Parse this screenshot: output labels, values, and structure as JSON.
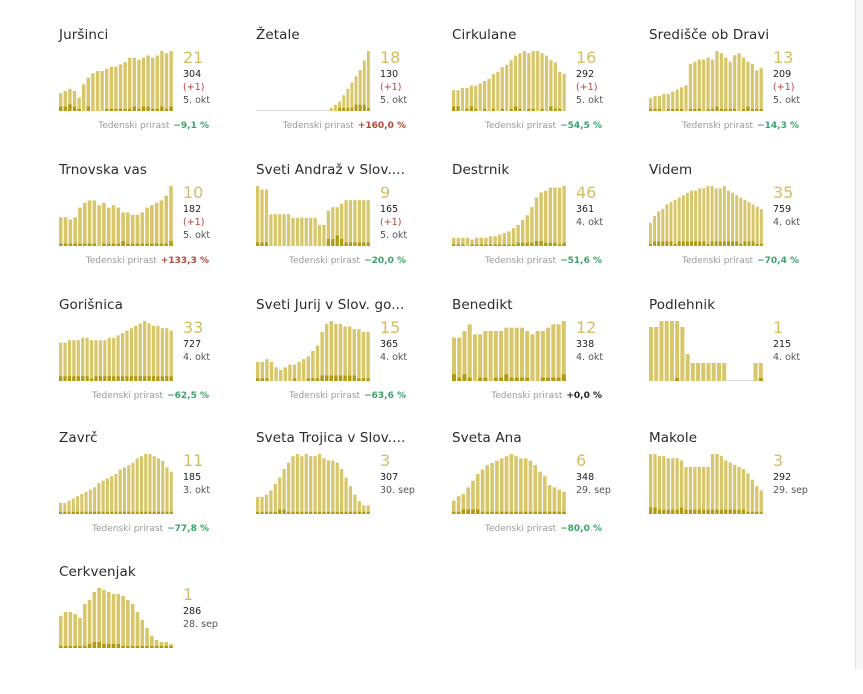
{
  "colors": {
    "bar": "#d7c76a",
    "bar_dark": "#b09a12",
    "big_number": "#d2bf62",
    "positive": "#b5463a",
    "negative": "#3aa36a",
    "neutral": "#222222"
  },
  "growth_label": "Tedenski prirast",
  "chart_data": [
    {
      "type": "bar",
      "title": "Juršinci",
      "big": "21",
      "total": "304",
      "delta": "(+1)",
      "date": "5. okt",
      "growth": "−9,1 %",
      "growth_sign": "neg",
      "values": [
        8,
        9,
        10,
        9,
        6,
        12,
        15,
        17,
        18,
        18,
        19,
        20,
        20,
        21,
        22,
        24,
        24,
        23,
        24,
        25,
        24,
        25,
        27,
        26,
        27
      ],
      "values2": [
        2,
        2,
        3,
        2,
        1,
        0,
        2,
        0,
        0,
        0,
        1,
        1,
        1,
        1,
        1,
        1,
        2,
        1,
        2,
        2,
        1,
        1,
        2,
        1,
        2
      ]
    },
    {
      "type": "bar",
      "title": "Žetale",
      "big": "18",
      "total": "130",
      "delta": "(+1)",
      "date": "5. okt",
      "growth": "+160,0 %",
      "growth_sign": "pos",
      "values": [
        0,
        0,
        0,
        0,
        0,
        0,
        0,
        0,
        0,
        0,
        0,
        0,
        0,
        0,
        0,
        0,
        0,
        0,
        1,
        2,
        3,
        5,
        7,
        9,
        11,
        13,
        16,
        19
      ],
      "values2": [
        0,
        0,
        0,
        0,
        0,
        0,
        0,
        0,
        0,
        0,
        0,
        0,
        0,
        0,
        0,
        0,
        0,
        0,
        0,
        0,
        1,
        1,
        1,
        1,
        2,
        2,
        2,
        1
      ]
    },
    {
      "type": "bar",
      "title": "Cirkulane",
      "big": "16",
      "total": "292",
      "delta": "(+1)",
      "date": "5. okt",
      "growth": "−54,5 %",
      "growth_sign": "neg",
      "values": [
        9,
        9,
        10,
        10,
        11,
        11,
        12,
        13,
        14,
        16,
        17,
        19,
        20,
        22,
        24,
        25,
        26,
        25,
        26,
        26,
        25,
        24,
        22,
        21,
        17,
        16
      ],
      "values2": [
        2,
        2,
        0,
        1,
        2,
        1,
        0,
        1,
        0,
        1,
        0,
        1,
        0,
        1,
        2,
        1,
        0,
        1,
        1,
        0,
        1,
        0,
        2,
        1,
        1,
        0
      ]
    },
    {
      "type": "bar",
      "title": "Središče ob Dravi",
      "big": "13",
      "total": "209",
      "delta": "(+1)",
      "date": "5. okt",
      "growth": "−14,3 %",
      "growth_sign": "neg",
      "values": [
        6,
        7,
        7,
        8,
        8,
        9,
        10,
        11,
        12,
        22,
        23,
        24,
        24,
        25,
        24,
        28,
        27,
        25,
        23,
        26,
        27,
        25,
        23,
        22,
        19,
        20
      ],
      "values2": [
        1,
        1,
        1,
        0,
        1,
        1,
        1,
        1,
        0,
        1,
        1,
        1,
        0,
        1,
        1,
        2,
        1,
        1,
        1,
        1,
        0,
        1,
        2,
        1,
        1,
        1
      ]
    },
    {
      "type": "bar",
      "title": "Trnovska vas",
      "big": "10",
      "total": "182",
      "delta": "(+1)",
      "date": "5. okt",
      "growth": "+133,3 %",
      "growth_sign": "pos",
      "values": [
        12,
        12,
        11,
        12,
        16,
        18,
        19,
        19,
        17,
        18,
        16,
        17,
        16,
        14,
        14,
        13,
        13,
        14,
        16,
        17,
        18,
        19,
        21,
        25
      ],
      "values2": [
        1,
        1,
        1,
        1,
        1,
        1,
        1,
        1,
        0,
        1,
        1,
        1,
        1,
        2,
        1,
        1,
        1,
        1,
        1,
        1,
        1,
        1,
        1,
        2
      ]
    },
    {
      "type": "bar",
      "title": "Sveti Andraž v Slov....",
      "big": "9",
      "total": "165",
      "delta": "(+1)",
      "date": "5. okt",
      "growth": "−20,0 %",
      "growth_sign": "neg",
      "values": [
        17,
        16,
        16,
        9,
        9,
        9,
        9,
        9,
        8,
        8,
        8,
        8,
        8,
        8,
        6,
        6,
        10,
        11,
        11,
        12,
        13,
        13,
        13,
        13,
        13,
        13
      ],
      "values2": [
        1,
        1,
        1,
        0,
        0,
        0,
        0,
        0,
        0,
        0,
        0,
        0,
        0,
        0,
        0,
        0,
        2,
        2,
        3,
        2,
        1,
        1,
        1,
        1,
        1,
        1
      ]
    },
    {
      "type": "bar",
      "title": "Destrnik",
      "big": "46",
      "total": "361",
      "delta": "",
      "date": "4. okt",
      "growth": "−51,6 %",
      "growth_sign": "neg",
      "values": [
        5,
        5,
        5,
        5,
        4,
        5,
        5,
        5,
        6,
        6,
        7,
        8,
        9,
        11,
        13,
        16,
        19,
        24,
        30,
        33,
        34,
        36,
        36,
        36,
        37
      ],
      "values2": [
        1,
        1,
        1,
        0,
        1,
        1,
        1,
        1,
        1,
        1,
        1,
        1,
        1,
        1,
        2,
        2,
        2,
        2,
        3,
        3,
        2,
        2,
        2,
        1,
        2
      ]
    },
    {
      "type": "bar",
      "title": "Videm",
      "big": "35",
      "total": "759",
      "delta": "",
      "date": "4. okt",
      "growth": "−70,4 %",
      "growth_sign": "neg",
      "values": [
        10,
        13,
        15,
        16,
        18,
        19,
        20,
        21,
        22,
        23,
        24,
        24,
        25,
        25,
        26,
        26,
        25,
        25,
        26,
        24,
        23,
        22,
        21,
        20,
        19,
        18,
        17,
        16
      ],
      "values2": [
        1,
        2,
        2,
        2,
        2,
        2,
        1,
        2,
        2,
        2,
        2,
        2,
        2,
        2,
        1,
        2,
        2,
        2,
        2,
        2,
        2,
        2,
        1,
        2,
        2,
        2,
        1,
        1
      ]
    },
    {
      "type": "bar",
      "title": "Gorišnica",
      "big": "33",
      "total": "727",
      "delta": "",
      "date": "4. okt",
      "growth": "−62,5 %",
      "growth_sign": "neg",
      "values": [
        16,
        16,
        17,
        17,
        17,
        18,
        18,
        17,
        17,
        17,
        17,
        18,
        18,
        19,
        20,
        21,
        22,
        23,
        24,
        25,
        24,
        23,
        23,
        22,
        22,
        21
      ],
      "values2": [
        2,
        2,
        2,
        2,
        2,
        2,
        2,
        1,
        2,
        2,
        2,
        2,
        2,
        2,
        2,
        2,
        2,
        2,
        2,
        2,
        2,
        2,
        2,
        2,
        2,
        2
      ]
    },
    {
      "type": "bar",
      "title": "Sveti Jurij v Slov. go...",
      "big": "15",
      "total": "365",
      "delta": "",
      "date": "4. okt",
      "growth": "−63,6 %",
      "growth_sign": "neg",
      "values": [
        7,
        7,
        8,
        7,
        5,
        4,
        5,
        6,
        6,
        7,
        8,
        9,
        11,
        13,
        18,
        21,
        22,
        21,
        21,
        20,
        20,
        19,
        19,
        18,
        18
      ],
      "values2": [
        1,
        1,
        1,
        0,
        0,
        0,
        0,
        0,
        1,
        0,
        0,
        1,
        1,
        1,
        2,
        2,
        2,
        2,
        2,
        2,
        2,
        2,
        1,
        1,
        1
      ]
    },
    {
      "type": "bar",
      "title": "Benedikt",
      "big": "12",
      "total": "338",
      "delta": "",
      "date": "4. okt",
      "growth": "+0,0 %",
      "growth_sign": "zero",
      "values": [
        13,
        13,
        15,
        17,
        14,
        14,
        15,
        15,
        15,
        15,
        16,
        16,
        16,
        16,
        15,
        14,
        15,
        15,
        16,
        17,
        17,
        18
      ],
      "values2": [
        2,
        1,
        2,
        1,
        0,
        1,
        1,
        0,
        1,
        1,
        2,
        1,
        1,
        1,
        1,
        0,
        0,
        1,
        1,
        1,
        1,
        2
      ]
    },
    {
      "type": "bar",
      "title": "Podlehnik",
      "big": "1",
      "total": "215",
      "delta": "",
      "date": "4. okt",
      "growth": "",
      "growth_sign": "",
      "values": [
        18,
        18,
        20,
        20,
        20,
        20,
        18,
        9,
        6,
        6,
        6,
        6,
        6,
        6,
        6,
        0,
        0,
        0,
        0,
        0,
        6,
        6
      ],
      "values2": [
        0,
        0,
        0,
        0,
        0,
        1,
        0,
        0,
        0,
        0,
        0,
        0,
        0,
        0,
        0,
        0,
        0,
        0,
        0,
        0,
        0,
        1
      ]
    },
    {
      "type": "bar",
      "title": "Zavrč",
      "big": "11",
      "total": "185",
      "delta": "",
      "date": "3. okt",
      "growth": "−77,8 %",
      "growth_sign": "neg",
      "values": [
        5,
        5,
        6,
        7,
        8,
        9,
        10,
        11,
        12,
        14,
        15,
        16,
        17,
        18,
        20,
        21,
        22,
        23,
        25,
        26,
        27,
        27,
        26,
        25,
        24,
        21,
        19
      ],
      "values2": [
        1,
        1,
        1,
        1,
        1,
        1,
        1,
        1,
        1,
        1,
        1,
        1,
        1,
        1,
        1,
        1,
        1,
        1,
        1,
        1,
        1,
        1,
        1,
        1,
        1,
        1,
        1
      ]
    },
    {
      "type": "bar",
      "title": "Sveta Trojica v Slov....",
      "big": "3",
      "total": "307",
      "delta": "",
      "date": "30. sep",
      "growth": "",
      "growth_sign": "",
      "values": [
        8,
        8,
        9,
        11,
        14,
        17,
        21,
        24,
        27,
        28,
        27,
        28,
        27,
        27,
        28,
        26,
        25,
        25,
        24,
        21,
        17,
        13,
        9,
        6,
        4,
        4
      ],
      "values2": [
        1,
        1,
        1,
        1,
        1,
        2,
        2,
        1,
        1,
        1,
        1,
        1,
        1,
        1,
        1,
        1,
        1,
        1,
        1,
        1,
        1,
        1,
        1,
        1,
        1,
        1
      ]
    },
    {
      "type": "bar",
      "title": "Sveta Ana",
      "big": "6",
      "total": "348",
      "delta": "",
      "date": "29. sep",
      "growth": "−80,0 %",
      "growth_sign": "neg",
      "values": [
        6,
        8,
        9,
        12,
        15,
        18,
        20,
        22,
        23,
        24,
        25,
        26,
        27,
        26,
        25,
        25,
        24,
        22,
        19,
        17,
        13,
        12,
        11,
        10
      ],
      "values2": [
        1,
        1,
        2,
        2,
        2,
        2,
        1,
        1,
        1,
        1,
        1,
        1,
        1,
        1,
        1,
        1,
        1,
        1,
        1,
        1,
        1,
        1,
        1,
        1
      ]
    },
    {
      "type": "bar",
      "title": "Makole",
      "big": "3",
      "total": "292",
      "delta": "",
      "date": "29. sep",
      "growth": "",
      "growth_sign": "",
      "values": [
        28,
        28,
        27,
        27,
        26,
        26,
        26,
        25,
        22,
        22,
        22,
        22,
        22,
        22,
        28,
        28,
        27,
        25,
        24,
        23,
        22,
        21,
        19,
        16,
        13,
        11
      ],
      "values2": [
        3,
        3,
        2,
        2,
        2,
        2,
        2,
        3,
        2,
        2,
        2,
        2,
        2,
        2,
        2,
        2,
        2,
        2,
        2,
        2,
        2,
        2,
        1,
        1,
        1,
        1
      ]
    },
    {
      "type": "bar",
      "title": "Cerkvenjak",
      "big": "1",
      "total": "286",
      "delta": "",
      "date": "28. sep",
      "growth": "",
      "growth_sign": "",
      "values": [
        16,
        18,
        18,
        17,
        15,
        22,
        24,
        28,
        30,
        29,
        28,
        27,
        27,
        26,
        24,
        22,
        18,
        14,
        10,
        6,
        4,
        3,
        3,
        2
      ],
      "values2": [
        1,
        1,
        1,
        1,
        1,
        1,
        2,
        3,
        3,
        2,
        2,
        2,
        2,
        1,
        1,
        1,
        1,
        1,
        1,
        1,
        1,
        1,
        1,
        1
      ]
    }
  ]
}
